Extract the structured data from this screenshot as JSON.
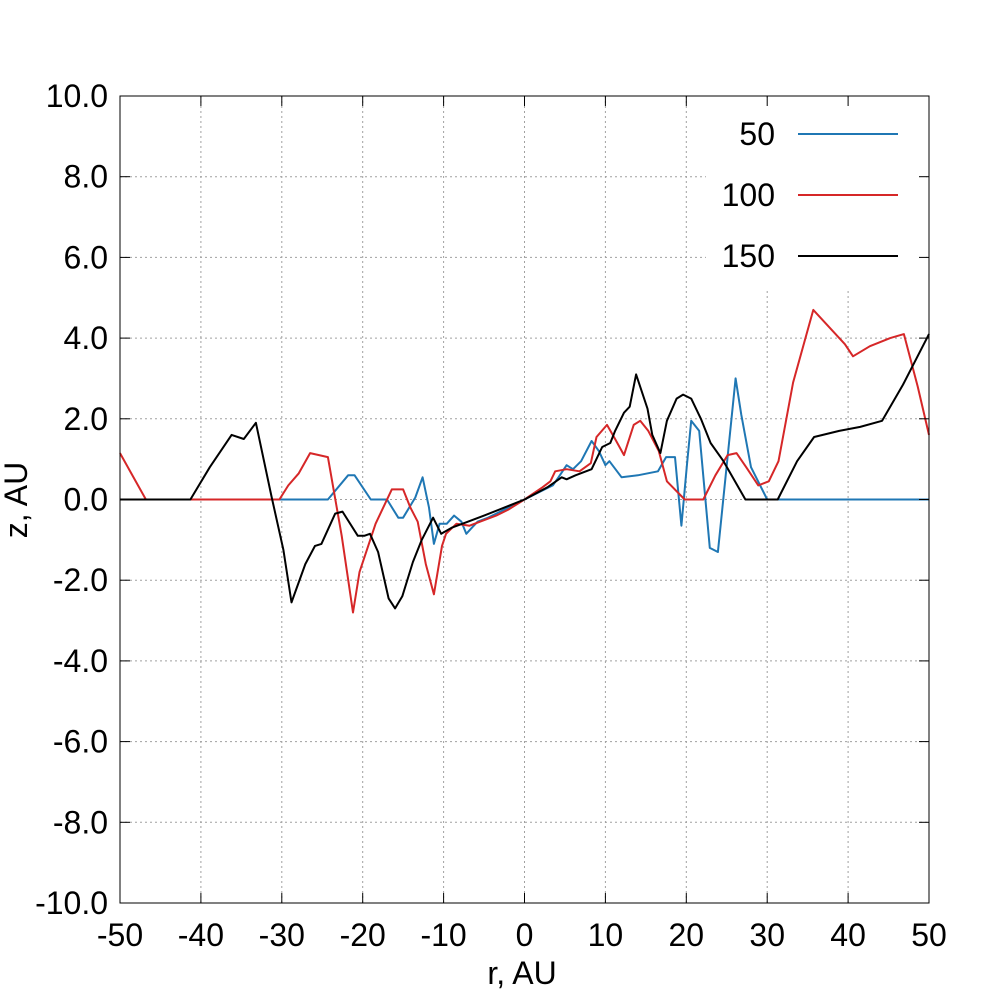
{
  "chart_data": {
    "type": "line",
    "title": "",
    "xlabel": "r, AU",
    "ylabel": "z, AU",
    "xlim": [
      -50,
      50
    ],
    "ylim": [
      -10,
      10
    ],
    "grid": true,
    "legend_position": "top-right",
    "x_ticks": [
      -50,
      -40,
      -30,
      -20,
      -10,
      0,
      10,
      20,
      30,
      40,
      50
    ],
    "x_tick_labels": [
      "-50",
      "-40",
      "-30",
      "-20",
      "-10",
      "0",
      "10",
      "20",
      "30",
      "40",
      "50"
    ],
    "y_ticks": [
      10,
      8,
      6,
      4,
      2,
      0,
      -2,
      -4,
      -6,
      -8,
      -10
    ],
    "y_tick_labels": [
      "10.0",
      "8.0",
      "6.0",
      "4.0",
      "2.0",
      "0.0",
      "-2.0",
      "-4.0",
      "-6.0",
      "-8.0",
      "-10.0"
    ],
    "series": [
      {
        "name": "50",
        "color": "#1f77b4",
        "points": [
          [
            -50,
            0
          ],
          [
            -24.3,
            0
          ],
          [
            -21.8,
            0.6
          ],
          [
            -21,
            0.6
          ],
          [
            -19,
            0
          ],
          [
            -17,
            0
          ],
          [
            -15.6,
            -0.45
          ],
          [
            -15,
            -0.45
          ],
          [
            -13.5,
            0.05
          ],
          [
            -12.6,
            0.55
          ],
          [
            -11.8,
            -0.2
          ],
          [
            -11.2,
            -1.1
          ],
          [
            -10.5,
            -0.6
          ],
          [
            -9.6,
            -0.6
          ],
          [
            -8.7,
            -0.4
          ],
          [
            -7.8,
            -0.55
          ],
          [
            -7.2,
            -0.85
          ],
          [
            -6.5,
            -0.7
          ],
          [
            -5.8,
            -0.55
          ],
          [
            -4.5,
            -0.45
          ],
          [
            -3.5,
            -0.35
          ],
          [
            -2,
            -0.2
          ],
          [
            0,
            0
          ],
          [
            2,
            0.2
          ],
          [
            3.5,
            0.35
          ],
          [
            4.2,
            0.55
          ],
          [
            5.2,
            0.85
          ],
          [
            6,
            0.75
          ],
          [
            7,
            0.95
          ],
          [
            8.3,
            1.45
          ],
          [
            9.2,
            1.2
          ],
          [
            10,
            0.85
          ],
          [
            10.5,
            0.95
          ],
          [
            12,
            0.55
          ],
          [
            14,
            0.6
          ],
          [
            16.5,
            0.7
          ],
          [
            17.5,
            1.05
          ],
          [
            18.6,
            1.05
          ],
          [
            19.4,
            -0.65
          ],
          [
            20.1,
            0.9
          ],
          [
            20.6,
            1.95
          ],
          [
            21.6,
            1.7
          ],
          [
            22.9,
            -1.2
          ],
          [
            23.9,
            -1.3
          ],
          [
            26.1,
            3.0
          ],
          [
            26.8,
            2.1
          ],
          [
            28,
            0.8
          ],
          [
            30,
            0
          ],
          [
            50,
            0
          ]
        ]
      },
      {
        "name": "100",
        "color": "#d62728",
        "points": [
          [
            -50,
            1.15
          ],
          [
            -46.8,
            0
          ],
          [
            -30.3,
            0
          ],
          [
            -29.2,
            0.35
          ],
          [
            -27.9,
            0.65
          ],
          [
            -26.5,
            1.15
          ],
          [
            -24.3,
            1.05
          ],
          [
            -22.6,
            -0.9
          ],
          [
            -21.2,
            -2.8
          ],
          [
            -20.4,
            -1.8
          ],
          [
            -18.4,
            -0.6
          ],
          [
            -16.4,
            0.25
          ],
          [
            -15,
            0.25
          ],
          [
            -14.1,
            -0.2
          ],
          [
            -13.2,
            -0.55
          ],
          [
            -12.2,
            -1.6
          ],
          [
            -11.2,
            -2.35
          ],
          [
            -10.2,
            -1.15
          ],
          [
            -9.7,
            -0.85
          ],
          [
            -8.4,
            -0.6
          ],
          [
            -6.8,
            -0.65
          ],
          [
            -5.5,
            -0.55
          ],
          [
            -3.5,
            -0.4
          ],
          [
            -2,
            -0.25
          ],
          [
            0,
            0
          ],
          [
            2.2,
            0.3
          ],
          [
            3.2,
            0.45
          ],
          [
            3.8,
            0.7
          ],
          [
            5.2,
            0.75
          ],
          [
            6.8,
            0.7
          ],
          [
            8.2,
            0.9
          ],
          [
            8.9,
            1.55
          ],
          [
            10.2,
            1.85
          ],
          [
            11.2,
            1.5
          ],
          [
            12.3,
            1.1
          ],
          [
            13.5,
            1.85
          ],
          [
            14.3,
            1.95
          ],
          [
            15.3,
            1.7
          ],
          [
            16.6,
            1.2
          ],
          [
            17.6,
            0.45
          ],
          [
            19.8,
            0
          ],
          [
            22.1,
            0
          ],
          [
            23.6,
            0.6
          ],
          [
            25.1,
            1.1
          ],
          [
            26.2,
            1.15
          ],
          [
            27.4,
            0.8
          ],
          [
            28.9,
            0.35
          ],
          [
            30.2,
            0.45
          ],
          [
            31.4,
            0.95
          ],
          [
            33.2,
            2.9
          ],
          [
            35.7,
            4.7
          ],
          [
            39.6,
            3.85
          ],
          [
            40.6,
            3.55
          ],
          [
            42.7,
            3.8
          ],
          [
            45.2,
            4.0
          ],
          [
            46.9,
            4.1
          ],
          [
            48.6,
            2.8
          ],
          [
            50,
            1.6
          ]
        ]
      },
      {
        "name": "150",
        "color": "#000000",
        "points": [
          [
            -50,
            0
          ],
          [
            -41.3,
            0
          ],
          [
            -38.9,
            0.8
          ],
          [
            -36.2,
            1.6
          ],
          [
            -34.7,
            1.5
          ],
          [
            -33.2,
            1.9
          ],
          [
            -31.3,
            0.1
          ],
          [
            -29.8,
            -1.25
          ],
          [
            -28.8,
            -2.55
          ],
          [
            -27.1,
            -1.6
          ],
          [
            -25.9,
            -1.15
          ],
          [
            -25.1,
            -1.1
          ],
          [
            -23.4,
            -0.35
          ],
          [
            -22.5,
            -0.3
          ],
          [
            -20.6,
            -0.9
          ],
          [
            -19.8,
            -0.9
          ],
          [
            -19.1,
            -0.85
          ],
          [
            -18.1,
            -1.3
          ],
          [
            -16.8,
            -2.45
          ],
          [
            -16,
            -2.7
          ],
          [
            -15.1,
            -2.4
          ],
          [
            -13.8,
            -1.55
          ],
          [
            -12.7,
            -1.0
          ],
          [
            -11.3,
            -0.45
          ],
          [
            -10.3,
            -0.85
          ],
          [
            -9,
            -0.7
          ],
          [
            -7,
            -0.55
          ],
          [
            -5,
            -0.4
          ],
          [
            -2.5,
            -0.2
          ],
          [
            0,
            0
          ],
          [
            2.8,
            0.3
          ],
          [
            4.6,
            0.55
          ],
          [
            5.2,
            0.5
          ],
          [
            6.3,
            0.6
          ],
          [
            8.3,
            0.75
          ],
          [
            9.6,
            1.3
          ],
          [
            10.6,
            1.4
          ],
          [
            11.2,
            1.7
          ],
          [
            12.3,
            2.15
          ],
          [
            13,
            2.3
          ],
          [
            13.8,
            3.1
          ],
          [
            15.2,
            2.25
          ],
          [
            15.8,
            1.6
          ],
          [
            16.8,
            1.15
          ],
          [
            17.6,
            1.95
          ],
          [
            18.8,
            2.5
          ],
          [
            19.6,
            2.6
          ],
          [
            20.6,
            2.5
          ],
          [
            21.8,
            2.0
          ],
          [
            23,
            1.4
          ],
          [
            24.6,
            0.95
          ],
          [
            27.3,
            0
          ],
          [
            31.3,
            0
          ],
          [
            33.7,
            0.95
          ],
          [
            35.8,
            1.55
          ],
          [
            38.9,
            1.7
          ],
          [
            41.5,
            1.8
          ],
          [
            44.2,
            1.95
          ],
          [
            46.8,
            2.85
          ],
          [
            50,
            4.1
          ]
        ]
      }
    ]
  }
}
